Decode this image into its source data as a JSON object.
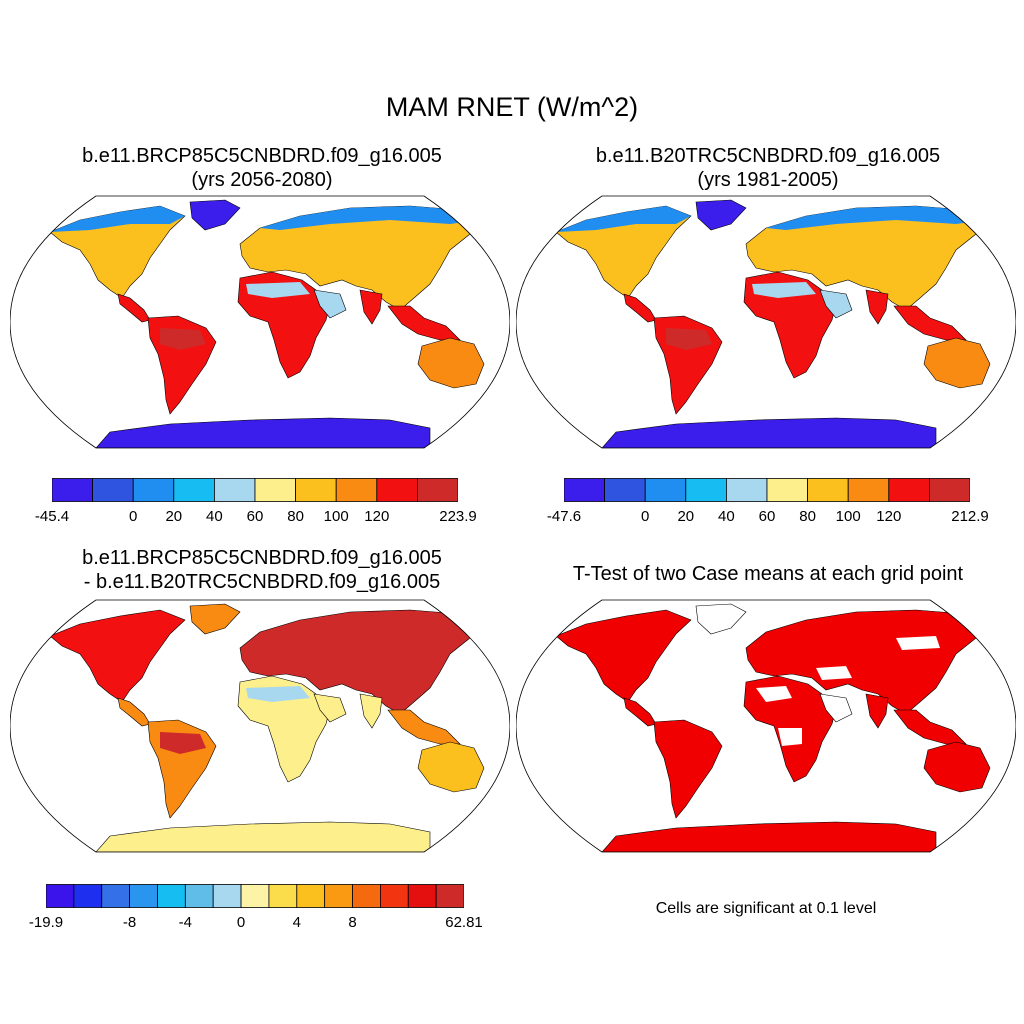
{
  "figure": {
    "title": "MAM RNET (W/m^2)"
  },
  "panels": [
    {
      "title_line1": "b.e11.BRCP85C5CNBDRD.f09_g16.005",
      "title_line2": "(yrs 2056-2080)",
      "colorbar": {
        "colors": [
          "#3b1eeb",
          "#2f55e0",
          "#1f8ef0",
          "#17bdf2",
          "#a7d8f0",
          "#fcef8c",
          "#fbbf1e",
          "#f98a12",
          "#f21010",
          "#cf2a2a"
        ],
        "labels": [
          "-45.4",
          "0",
          "20",
          "40",
          "60",
          "80",
          "100",
          "120",
          "223.9"
        ]
      }
    },
    {
      "title_line1": "b.e11.B20TRC5CNBDRD.f09_g16.005",
      "title_line2": "(yrs 1981-2005)",
      "colorbar": {
        "colors": [
          "#3b1eeb",
          "#2f55e0",
          "#1f8ef0",
          "#17bdf2",
          "#a7d8f0",
          "#fcef8c",
          "#fbbf1e",
          "#f98a12",
          "#f21010",
          "#cf2a2a"
        ],
        "labels": [
          "-47.6",
          "0",
          "20",
          "40",
          "60",
          "80",
          "100",
          "120",
          "212.9"
        ]
      }
    },
    {
      "title_line1": "b.e11.BRCP85C5CNBDRD.f09_g16.005",
      "title_line2": "- b.e11.B20TRC5CNBDRD.f09_g16.005",
      "colorbar": {
        "colors": [
          "#3a14ea",
          "#1f2ff0",
          "#3470e8",
          "#2a95ef",
          "#15bdf0",
          "#5fbde8",
          "#a7d8f0",
          "#fdf3a6",
          "#fbdc4a",
          "#fbbf1e",
          "#f99a12",
          "#f56a0e",
          "#f23410",
          "#e40f0f",
          "#cf2a2a"
        ],
        "labels": [
          "-19.9",
          "-8",
          "-4",
          "0",
          "4",
          "8",
          "62.81"
        ]
      }
    },
    {
      "title_line1": "T-Test of two Case means at each grid point",
      "note": "Cells are significant at 0.1 level"
    }
  ]
}
